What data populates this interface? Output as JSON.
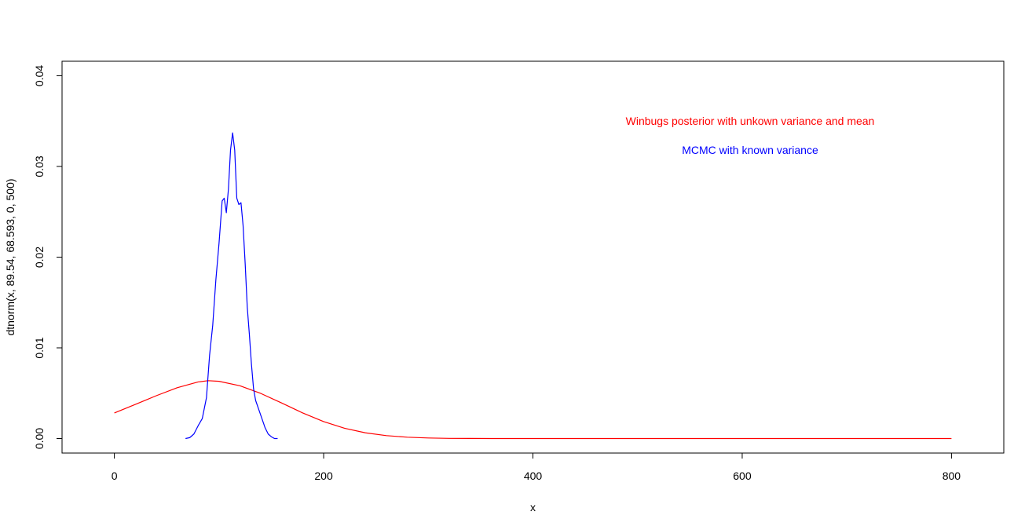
{
  "chart_data": {
    "type": "line",
    "title": "",
    "xlabel": "x",
    "ylabel": "dtnorm(x, 89.54, 68.593, 0, 500)",
    "xlim": [
      -50,
      850
    ],
    "ylim": [
      -0.0016,
      0.0416
    ],
    "xticks": [
      "0",
      "200",
      "400",
      "600",
      "800"
    ],
    "yticks": [
      "0.00",
      "0.01",
      "0.02",
      "0.03",
      "0.04"
    ],
    "grid": false,
    "legend": "top-right",
    "annotations": [
      {
        "text": "Winbugs posterior with unkown variance and mean",
        "color": "#ff0000"
      },
      {
        "text": "MCMC with known variance",
        "color": "#0000ff"
      }
    ],
    "series": [
      {
        "color": "#ff0000",
        "x": [
          0,
          20,
          40,
          60,
          80,
          89.54,
          100,
          120,
          140,
          160,
          180,
          200,
          220,
          240,
          260,
          280,
          300,
          320,
          340,
          360,
          400,
          500,
          600,
          700,
          800
        ],
        "y": [
          0.00282,
          0.00376,
          0.00472,
          0.0056,
          0.00624,
          0.00638,
          0.00631,
          0.00582,
          0.00497,
          0.00391,
          0.00282,
          0.00187,
          0.00113,
          0.00063,
          0.00032,
          0.00015,
          6e-05,
          2e-05,
          1e-05,
          0.0,
          0.0,
          0.0,
          0.0,
          0.0,
          0.0
        ]
      },
      {
        "color": "#0000ff",
        "x": [
          68,
          72,
          76,
          80,
          84,
          88,
          91,
          94,
          97,
          100,
          103,
          105,
          107,
          109,
          111,
          113,
          115,
          117,
          119,
          121,
          123,
          125,
          127,
          129,
          131,
          133,
          135,
          138,
          141,
          144,
          147,
          150,
          153,
          156
        ],
        "y": [
          0.0,
          0.0001,
          0.0005,
          0.0014,
          0.0022,
          0.0045,
          0.0092,
          0.0125,
          0.0175,
          0.0215,
          0.0262,
          0.0265,
          0.0249,
          0.0275,
          0.0318,
          0.0337,
          0.0318,
          0.0265,
          0.0258,
          0.026,
          0.0235,
          0.0193,
          0.0145,
          0.0115,
          0.0082,
          0.0055,
          0.0042,
          0.0032,
          0.0022,
          0.0012,
          0.0005,
          0.0002,
          0.0,
          0.0
        ]
      }
    ]
  }
}
